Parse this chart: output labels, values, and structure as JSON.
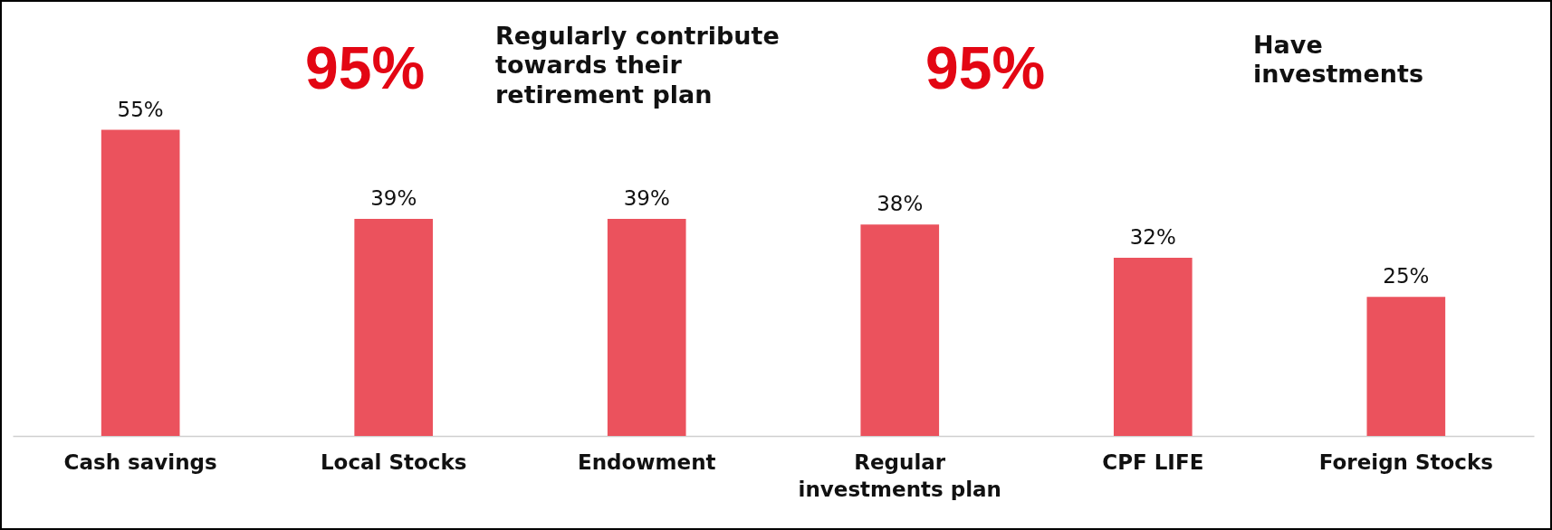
{
  "chart_data": {
    "type": "bar",
    "categories": [
      "Cash savings",
      "Local Stocks",
      "Endowment",
      "Regular investments plan",
      "CPF LIFE",
      "Foreign Stocks"
    ],
    "values": [
      55,
      39,
      39,
      38,
      32,
      25
    ],
    "color": "#eb525d",
    "data_labels": true,
    "value_labels": [
      "55%",
      "39%",
      "39%",
      "38%",
      "32%",
      "25%"
    ],
    "annotations": [
      "95%",
      "Regularly contribute towards their retirement plan",
      "95%",
      "Have investments"
    ]
  }
}
